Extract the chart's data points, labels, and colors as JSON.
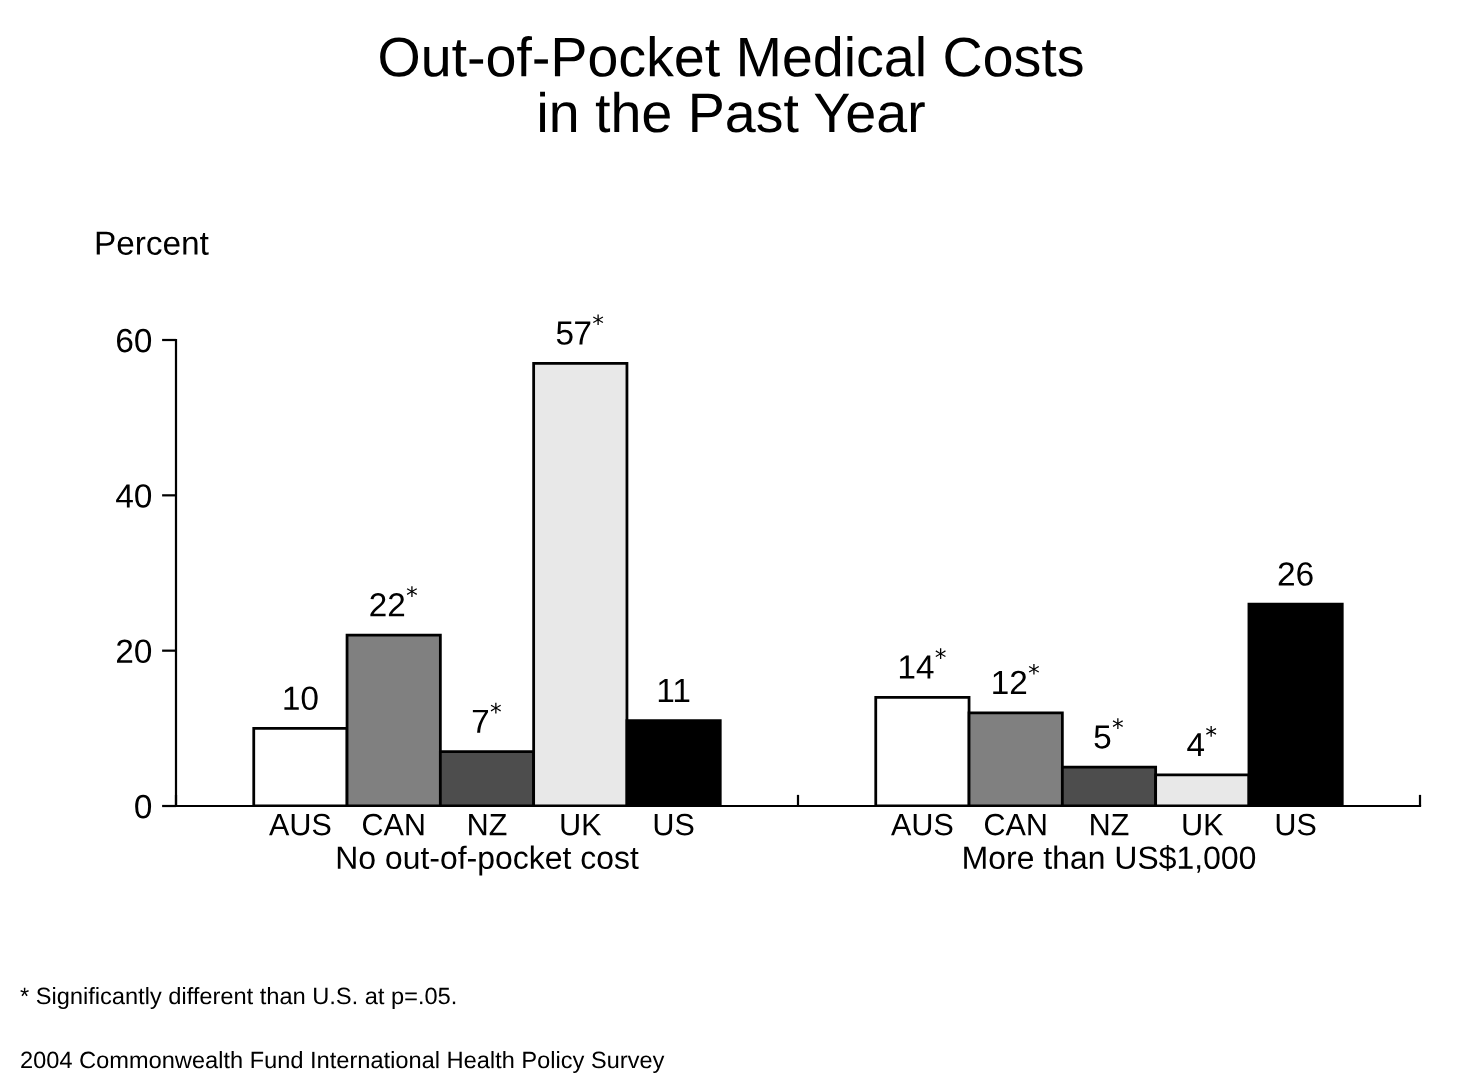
{
  "chart_data": {
    "type": "bar",
    "title": "Out-of-Pocket Medical Costs\nin the Past Year",
    "ylabel": "Percent",
    "categories": [
      "No out-of-pocket cost",
      "More than US$1,000"
    ],
    "series": [
      {
        "name": "AUS",
        "color": "#ffffff",
        "values": [
          10,
          14
        ],
        "value_labels": [
          "10",
          "14$^{*}$"
        ]
      },
      {
        "name": "CAN",
        "color": "#808080",
        "values": [
          22,
          12
        ],
        "value_labels": [
          "22$^{*}$",
          "12$^{*}$"
        ]
      },
      {
        "name": "NZ",
        "color": "#4d4d4d",
        "values": [
          7,
          5
        ],
        "value_labels": [
          "7$^{*}$",
          "5$^{*}$"
        ]
      },
      {
        "name": "UK",
        "color": "#e8e8e8",
        "values": [
          57,
          4
        ],
        "value_labels": [
          "57$^{*}$",
          "4$^{*}$"
        ]
      },
      {
        "name": "US",
        "color": "#000000",
        "values": [
          11,
          26
        ],
        "value_labels": [
          "11",
          "26"
        ]
      }
    ],
    "ylim": [
      0,
      60
    ],
    "yticks": [
      0,
      20,
      40,
      60
    ],
    "grid": false,
    "legend": false,
    "annotations": [
      "* Significantly different than U.S. at p=.05.",
      "2004 Commonwealth Fund International Health Policy Survey"
    ]
  }
}
